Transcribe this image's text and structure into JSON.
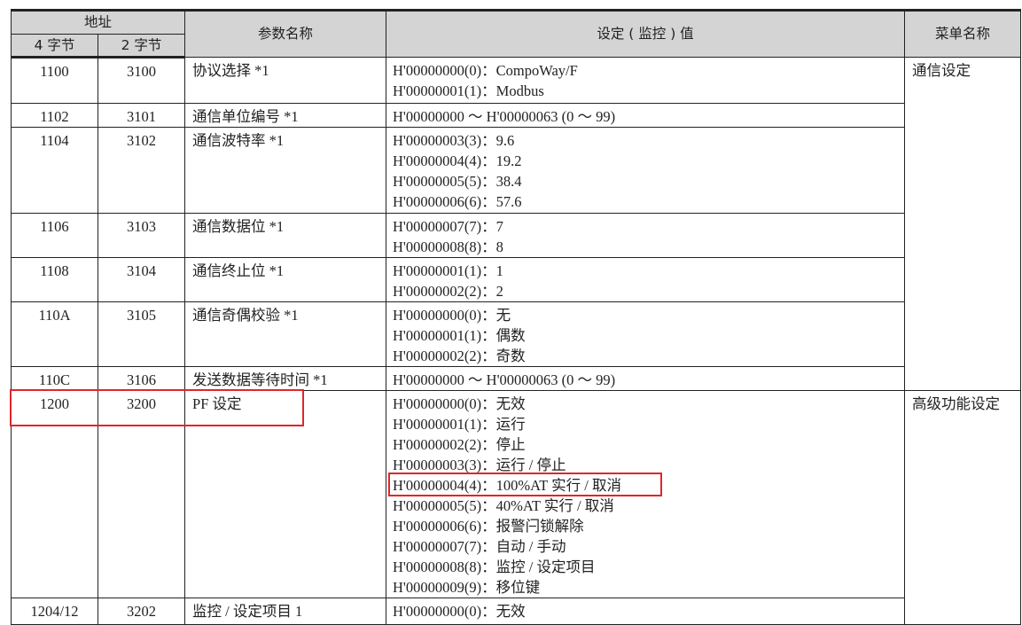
{
  "header": {
    "address": "地址",
    "bytes4": "4 字节",
    "bytes2": "2 字节",
    "param_name": "参数名称",
    "setting_value": "设定 ( 监控 ) 值",
    "menu_name": "菜单名称"
  },
  "rows": [
    {
      "addr4": "1100",
      "addr2": "3100",
      "name": "协议选择 *1",
      "values": [
        "H'00000000(0)：CompoWay/F",
        "H'00000001(1)：Modbus"
      ]
    },
    {
      "addr4": "1102",
      "addr2": "3101",
      "name": "通信单位编号 *1",
      "values": [
        "H'00000000 ～ H'00000063 (0 ～ 99)"
      ]
    },
    {
      "addr4": "1104",
      "addr2": "3102",
      "name": "通信波特率 *1",
      "values": [
        "H'00000003(3)：9.6",
        "H'00000004(4)：19.2",
        "H'00000005(5)：38.4",
        "H'00000006(6)：57.6"
      ]
    },
    {
      "addr4": "1106",
      "addr2": "3103",
      "name": "通信数据位 *1",
      "values": [
        "H'00000007(7)：7",
        "H'00000008(8)：8"
      ]
    },
    {
      "addr4": "1108",
      "addr2": "3104",
      "name": "通信终止位 *1",
      "values": [
        "H'00000001(1)：1",
        "H'00000002(2)：2"
      ]
    },
    {
      "addr4": "110A",
      "addr2": "3105",
      "name": "通信奇偶校验 *1",
      "values": [
        "H'00000000(0)：无",
        "H'00000001(1)：偶数",
        "H'00000002(2)：奇数"
      ]
    },
    {
      "addr4": "110C",
      "addr2": "3106",
      "name": "发送数据等待时间 *1",
      "values": [
        "H'00000000 ～ H'00000063 (0 ～ 99)"
      ]
    },
    {
      "addr4": "1200",
      "addr2": "3200",
      "name": "PF 设定",
      "values": [
        "H'00000000(0)：无效",
        "H'00000001(1)：运行",
        "H'00000002(2)：停止",
        "H'00000003(3)：运行 / 停止",
        "H'00000004(4)：100%AT 实行 / 取消",
        "H'00000005(5)：40%AT 实行 / 取消",
        "H'00000006(6)：报警闩锁解除",
        "H'00000007(7)：自动 / 手动",
        "H'00000008(8)：监控 / 设定项目",
        "H'00000009(9)：移位键"
      ]
    },
    {
      "addr4": "1204/12",
      "addr2": "3202",
      "name": "监控 / 设定项目 1",
      "values": [
        "H'00000000(0)：无效"
      ]
    }
  ],
  "menus": [
    "通信设定",
    "高级功能设定"
  ],
  "highlight_color": "#e0262a"
}
